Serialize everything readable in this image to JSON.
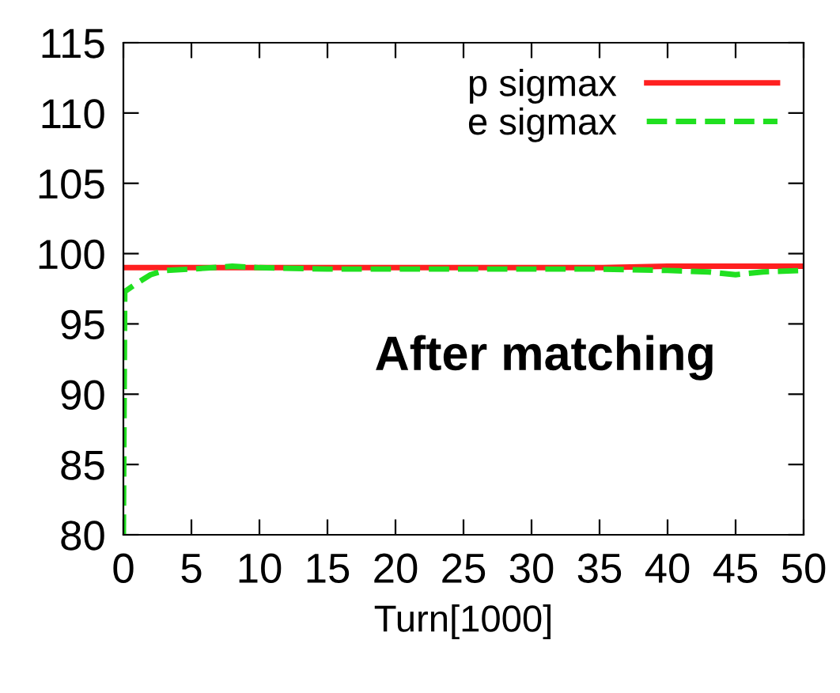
{
  "chart_data": {
    "type": "line",
    "xlabel": "Turn[1000]",
    "annotations": [
      "After matching"
    ],
    "xlim": [
      0,
      50
    ],
    "ylim": [
      80,
      115
    ],
    "xticks": [
      0,
      5,
      10,
      15,
      20,
      25,
      30,
      35,
      40,
      45,
      50
    ],
    "yticks": [
      80,
      85,
      90,
      95,
      100,
      105,
      110,
      115
    ],
    "grid": false,
    "legend": "top right",
    "series": [
      {
        "name": "p sigmax",
        "color": "#ff2020",
        "line_style": "solid",
        "x": [
          0,
          5,
          10,
          15,
          20,
          25,
          30,
          35,
          40,
          45,
          50
        ],
        "values": [
          99.0,
          99.0,
          99.0,
          99.0,
          99.0,
          99.0,
          99.0,
          99.0,
          99.1,
          99.1,
          99.1
        ]
      },
      {
        "name": "e sigmax",
        "color": "#20e020",
        "line_style": "dashed",
        "x": [
          0,
          0.1,
          1,
          2,
          3,
          5,
          8,
          10,
          15,
          20,
          25,
          30,
          35,
          40,
          43,
          45,
          47,
          50
        ],
        "values": [
          80,
          97.3,
          97.9,
          98.5,
          98.8,
          98.9,
          99.1,
          99.0,
          98.9,
          98.9,
          98.9,
          98.9,
          98.9,
          98.8,
          98.7,
          98.5,
          98.7,
          98.8
        ]
      }
    ]
  }
}
